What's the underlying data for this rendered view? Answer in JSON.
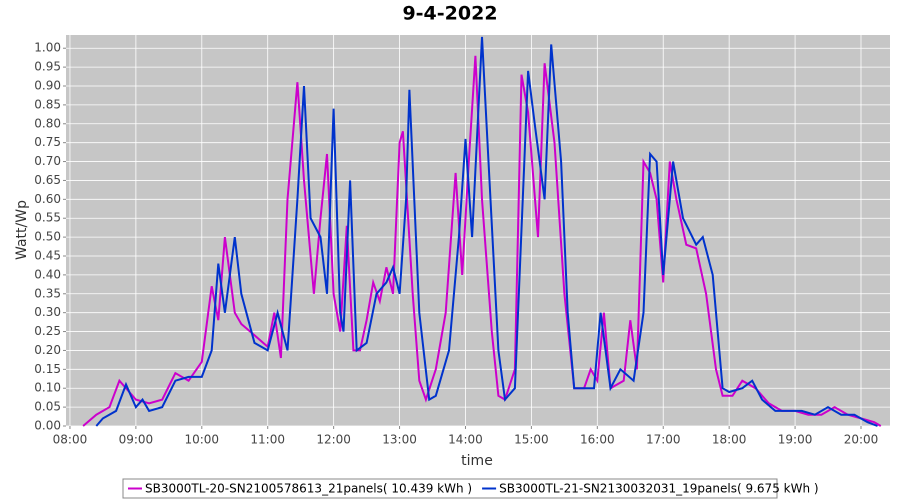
{
  "chart_data": {
    "type": "line",
    "title": "9-4-2022",
    "x_label": "time",
    "y_label": "Watt/Wp",
    "xlim": [
      7.94,
      20.44
    ],
    "ylim": [
      0,
      1.035
    ],
    "grid": true,
    "legend": "bottom",
    "xticks": [
      {
        "value": 8,
        "label": "08:00"
      },
      {
        "value": 9,
        "label": "09:00"
      },
      {
        "value": 10,
        "label": "10:00"
      },
      {
        "value": 11,
        "label": "11:00"
      },
      {
        "value": 12,
        "label": "12:00"
      },
      {
        "value": 13,
        "label": "13:00"
      },
      {
        "value": 14,
        "label": "14:00"
      },
      {
        "value": 15,
        "label": "15:00"
      },
      {
        "value": 16,
        "label": "16:00"
      },
      {
        "value": 17,
        "label": "17:00"
      },
      {
        "value": 18,
        "label": "18:00"
      },
      {
        "value": 19,
        "label": "19:00"
      },
      {
        "value": 20,
        "label": "20:00"
      }
    ],
    "yticks": [
      {
        "value": 0,
        "label": "0.00"
      },
      {
        "value": 0.05,
        "label": "0.05"
      },
      {
        "value": 0.1,
        "label": "0.10"
      },
      {
        "value": 0.15,
        "label": "0.15"
      },
      {
        "value": 0.2,
        "label": "0.20"
      },
      {
        "value": 0.25,
        "label": "0.25"
      },
      {
        "value": 0.3,
        "label": "0.30"
      },
      {
        "value": 0.35,
        "label": "0.35"
      },
      {
        "value": 0.4,
        "label": "0.40"
      },
      {
        "value": 0.45,
        "label": "0.45"
      },
      {
        "value": 0.5,
        "label": "0.50"
      },
      {
        "value": 0.55,
        "label": "0.55"
      },
      {
        "value": 0.6,
        "label": "0.60"
      },
      {
        "value": 0.65,
        "label": "0.65"
      },
      {
        "value": 0.7,
        "label": "0.70"
      },
      {
        "value": 0.75,
        "label": "0.75"
      },
      {
        "value": 0.8,
        "label": "0.80"
      },
      {
        "value": 0.85,
        "label": "0.85"
      },
      {
        "value": 0.9,
        "label": "0.90"
      },
      {
        "value": 0.95,
        "label": "0.95"
      },
      {
        "value": 1,
        "label": "1.00"
      }
    ],
    "series": [
      {
        "name": "SB3000TL-20-SN2100578613_21panels( 10.439 kWh )",
        "color": "#cc00cc",
        "x": [
          8.2,
          8.4,
          8.6,
          8.75,
          8.9,
          9.0,
          9.2,
          9.4,
          9.6,
          9.8,
          10.0,
          10.15,
          10.25,
          10.35,
          10.5,
          10.6,
          10.8,
          11.0,
          11.1,
          11.2,
          11.3,
          11.45,
          11.55,
          11.7,
          11.8,
          11.9,
          12.0,
          12.1,
          12.2,
          12.3,
          12.4,
          12.5,
          12.6,
          12.7,
          12.8,
          12.9,
          13.0,
          13.05,
          13.2,
          13.3,
          13.4,
          13.55,
          13.7,
          13.85,
          13.95,
          14.05,
          14.15,
          14.25,
          14.4,
          14.5,
          14.6,
          14.75,
          14.85,
          14.95,
          15.1,
          15.2,
          15.35,
          15.5,
          15.65,
          15.8,
          15.9,
          16.0,
          16.1,
          16.2,
          16.4,
          16.5,
          16.6,
          16.7,
          16.8,
          16.9,
          17.0,
          17.1,
          17.2,
          17.35,
          17.5,
          17.65,
          17.8,
          17.9,
          18.05,
          18.2,
          18.4,
          18.6,
          18.8,
          19.0,
          19.2,
          19.4,
          19.6,
          19.8,
          20.0,
          20.2,
          20.3
        ],
        "values": [
          0,
          0.03,
          0.05,
          0.12,
          0.09,
          0.07,
          0.06,
          0.07,
          0.14,
          0.12,
          0.17,
          0.37,
          0.28,
          0.5,
          0.3,
          0.27,
          0.24,
          0.21,
          0.3,
          0.18,
          0.6,
          0.91,
          0.65,
          0.35,
          0.55,
          0.72,
          0.35,
          0.25,
          0.53,
          0.2,
          0.2,
          0.28,
          0.38,
          0.33,
          0.42,
          0.35,
          0.75,
          0.78,
          0.35,
          0.12,
          0.07,
          0.15,
          0.3,
          0.67,
          0.4,
          0.7,
          0.98,
          0.6,
          0.25,
          0.08,
          0.07,
          0.15,
          0.93,
          0.83,
          0.5,
          0.96,
          0.75,
          0.35,
          0.1,
          0.1,
          0.15,
          0.12,
          0.3,
          0.1,
          0.12,
          0.28,
          0.15,
          0.7,
          0.67,
          0.6,
          0.38,
          0.7,
          0.6,
          0.48,
          0.47,
          0.35,
          0.15,
          0.08,
          0.08,
          0.12,
          0.1,
          0.06,
          0.04,
          0.04,
          0.03,
          0.03,
          0.05,
          0.03,
          0.02,
          0.01,
          0
        ]
      },
      {
        "name": "SB3000TL-21-SN2130032031_19panels( 9.675 kWh )",
        "color": "#0033cc",
        "x": [
          8.4,
          8.5,
          8.7,
          8.85,
          9.0,
          9.1,
          9.2,
          9.4,
          9.6,
          9.8,
          10.0,
          10.15,
          10.25,
          10.35,
          10.5,
          10.6,
          10.8,
          11.0,
          11.15,
          11.3,
          11.45,
          11.55,
          11.65,
          11.8,
          11.9,
          12.0,
          12.1,
          12.15,
          12.25,
          12.35,
          12.5,
          12.65,
          12.8,
          12.9,
          13.0,
          13.1,
          13.15,
          13.3,
          13.45,
          13.55,
          13.75,
          13.9,
          14.0,
          14.1,
          14.25,
          14.35,
          14.5,
          14.6,
          14.75,
          14.95,
          15.05,
          15.2,
          15.3,
          15.45,
          15.55,
          15.65,
          15.8,
          15.95,
          16.05,
          16.2,
          16.35,
          16.55,
          16.7,
          16.8,
          16.9,
          17.0,
          17.15,
          17.3,
          17.5,
          17.6,
          17.75,
          17.9,
          18.0,
          18.2,
          18.35,
          18.5,
          18.7,
          18.9,
          19.1,
          19.3,
          19.5,
          19.7,
          19.9,
          20.1,
          20.25
        ],
        "values": [
          0,
          0.02,
          0.04,
          0.11,
          0.05,
          0.07,
          0.04,
          0.05,
          0.12,
          0.13,
          0.13,
          0.2,
          0.43,
          0.3,
          0.5,
          0.35,
          0.22,
          0.2,
          0.3,
          0.2,
          0.6,
          0.9,
          0.55,
          0.5,
          0.35,
          0.84,
          0.3,
          0.25,
          0.65,
          0.2,
          0.22,
          0.35,
          0.38,
          0.42,
          0.35,
          0.6,
          0.89,
          0.3,
          0.07,
          0.08,
          0.2,
          0.5,
          0.76,
          0.5,
          1.03,
          0.7,
          0.2,
          0.07,
          0.1,
          0.94,
          0.8,
          0.6,
          1.01,
          0.7,
          0.3,
          0.1,
          0.1,
          0.1,
          0.3,
          0.1,
          0.15,
          0.12,
          0.3,
          0.72,
          0.7,
          0.4,
          0.7,
          0.55,
          0.48,
          0.5,
          0.4,
          0.1,
          0.09,
          0.1,
          0.12,
          0.07,
          0.04,
          0.04,
          0.04,
          0.03,
          0.05,
          0.03,
          0.03,
          0.01,
          0
        ]
      }
    ]
  }
}
